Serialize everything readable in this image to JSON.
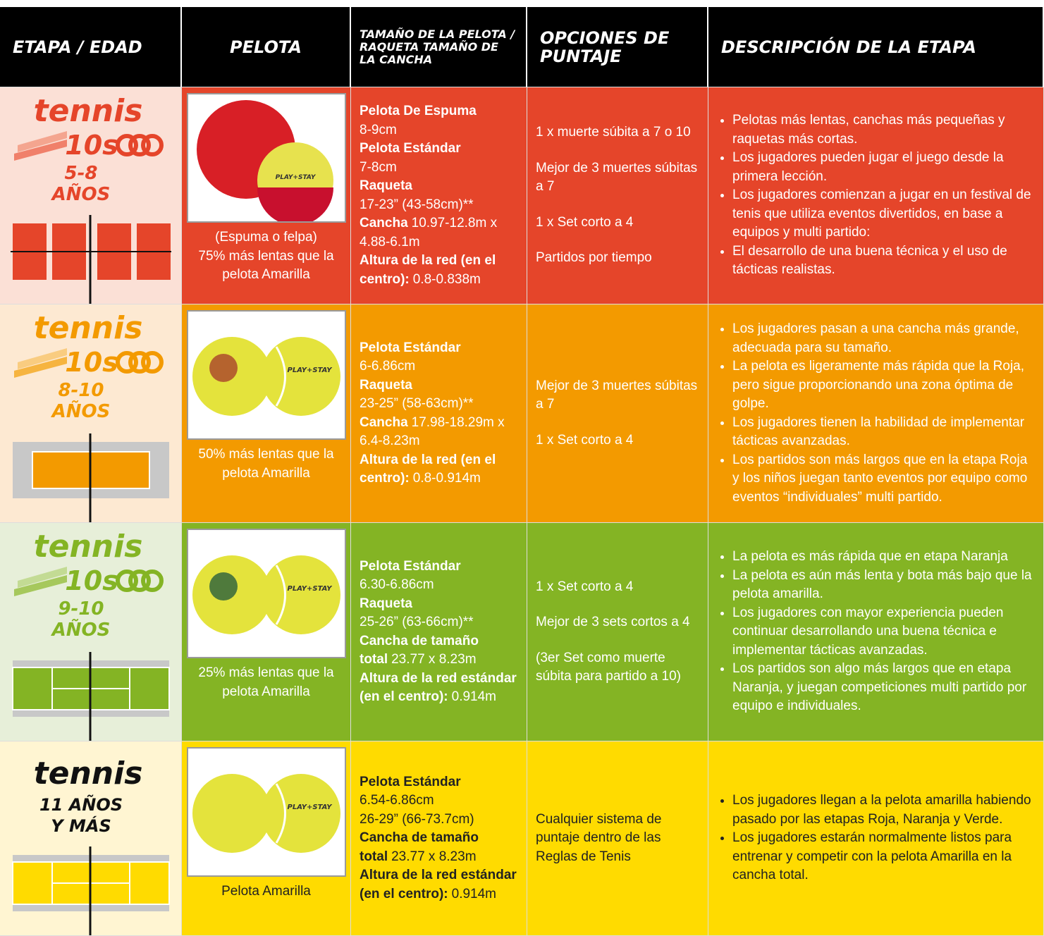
{
  "header": {
    "columns": [
      "ETAPA / EDAD",
      "PELOTA",
      "TAMAÑO DE LA PELOTA / RAQUETA TAMAÑO DE LA CANCHA",
      "OPCIONES DE PUNTAJE",
      "DESCRIPCIÓN DE LA ETAPA"
    ]
  },
  "rows": [
    {
      "stage": {
        "logo": "tennis",
        "badge": "10s",
        "age": [
          "5-8",
          "AÑOS"
        ]
      },
      "ball": {
        "brand": "PLAY+STAY",
        "caption": [
          "(Espuma o felpa)",
          "75% más lentas que la pelota Amarilla"
        ]
      },
      "specs": [
        {
          "b": "Pelota De Espuma"
        },
        {
          "t": "8-9cm"
        },
        {
          "b": "Pelota Estándar"
        },
        {
          "t": "7-8cm"
        },
        {
          "b": "Raqueta"
        },
        {
          "t": "17-23” (43-58cm)**"
        },
        {
          "b": "Cancha",
          "t": "10.97-12.8m x 4.88-6.1m"
        },
        {
          "b": "Altura de la red (en el centro):",
          "t": "0.8-0.838m"
        }
      ],
      "scoring": [
        "1 x muerte súbita a 7 o 10",
        "Mejor de 3 muertes súbitas a 7",
        "1 x Set corto a 4",
        "Partidos por tiempo"
      ],
      "description": [
        "Pelotas más lentas, canchas más pequeñas y raquetas más cortas.",
        "Los jugadores pueden jugar el juego desde la primera lección.",
        "Los jugadores comienzan a jugar en un festival de tenis que utiliza eventos divertidos, en base a equipos y multi partido:",
        "El desarrollo de una buena técnica y el uso de tácticas realistas."
      ]
    },
    {
      "stage": {
        "logo": "tennis",
        "badge": "10s",
        "age": [
          "8-10",
          "AÑOS"
        ]
      },
      "ball": {
        "brand": "PLAY+STAY",
        "caption": [
          "50% más lentas que la pelota Amarilla"
        ]
      },
      "specs": [
        {
          "b": "Pelota Estándar"
        },
        {
          "t": "6-6.86cm"
        },
        {
          "b": "Raqueta"
        },
        {
          "t": "23-25” (58-63cm)**"
        },
        {
          "b": "Cancha",
          "t": "17.98-18.29m x 6.4-8.23m"
        },
        {
          "b": "Altura de la red (en el centro):",
          "t": "0.8-0.914m"
        }
      ],
      "scoring": [
        "Mejor de 3 muertes súbitas a 7",
        "1 x Set corto a 4"
      ],
      "description": [
        "Los jugadores pasan a una cancha más grande, adecuada para su tamaño.",
        "La pelota es ligeramente más rápida que la Roja, pero sigue proporcionando una zona óptima de golpe.",
        "Los jugadores tienen la habilidad de implementar tácticas avanzadas.",
        "Los partidos son más largos que en la etapa Roja y los niños juegan tanto eventos por equipo como eventos “individuales” multi partido."
      ]
    },
    {
      "stage": {
        "logo": "tennis",
        "badge": "10s",
        "age": [
          "9-10",
          "AÑOS"
        ]
      },
      "ball": {
        "brand": "PLAY+STAY",
        "caption": [
          "25% más lentas que la pelota Amarilla"
        ]
      },
      "specs": [
        {
          "b": "Pelota Estándar"
        },
        {
          "t": "6.30-6.86cm"
        },
        {
          "b": "Raqueta"
        },
        {
          "t": "25-26” (63-66cm)**"
        },
        {
          "b": "Cancha de tamaño total",
          "t": "23.77 x 8.23m"
        },
        {
          "b": "Altura de la red estándar (en el centro):",
          "t": "0.914m"
        }
      ],
      "scoring": [
        "1 x Set corto a 4",
        "Mejor de 3 sets cortos a 4",
        "(3er Set como muerte súbita para partido a 10)"
      ],
      "description": [
        "La pelota es más rápida que en etapa Naranja",
        "La pelota es aún más lenta y bota más bajo que la pelota amarilla.",
        "Los jugadores con mayor experiencia pueden continuar desarrollando una buena técnica e implementar tácticas avanzadas.",
        "Los partidos son algo más largos que en etapa Naranja, y juegan competiciones multi partido por equipo e individuales."
      ]
    },
    {
      "stage": {
        "logo": "tennis",
        "age": [
          "11 AÑOS",
          "Y MÁS"
        ]
      },
      "ball": {
        "brand": "PLAY+STAY",
        "caption": [
          "Pelota Amarilla"
        ]
      },
      "specs": [
        {
          "b": "Pelota Estándar"
        },
        {
          "t": "6.54-6.86cm"
        },
        {
          "t": "26-29” (66-73.7cm)"
        },
        {
          "b": "Cancha de tamaño total",
          "t": "23.77 x 8.23m"
        },
        {
          "b": "Altura de la red estándar (en el centro):",
          "t": "0.914m"
        }
      ],
      "scoring": [
        "Cualquier sistema de puntaje dentro de las Reglas de Tenis"
      ],
      "description": [
        "Los jugadores llegan a la pelota amarilla habiendo pasado por las etapas Roja, Naranja y Verde.",
        "Los jugadores estarán normalmente listos para entrenar y competir con la pelota Amarilla en la cancha total."
      ]
    }
  ]
}
